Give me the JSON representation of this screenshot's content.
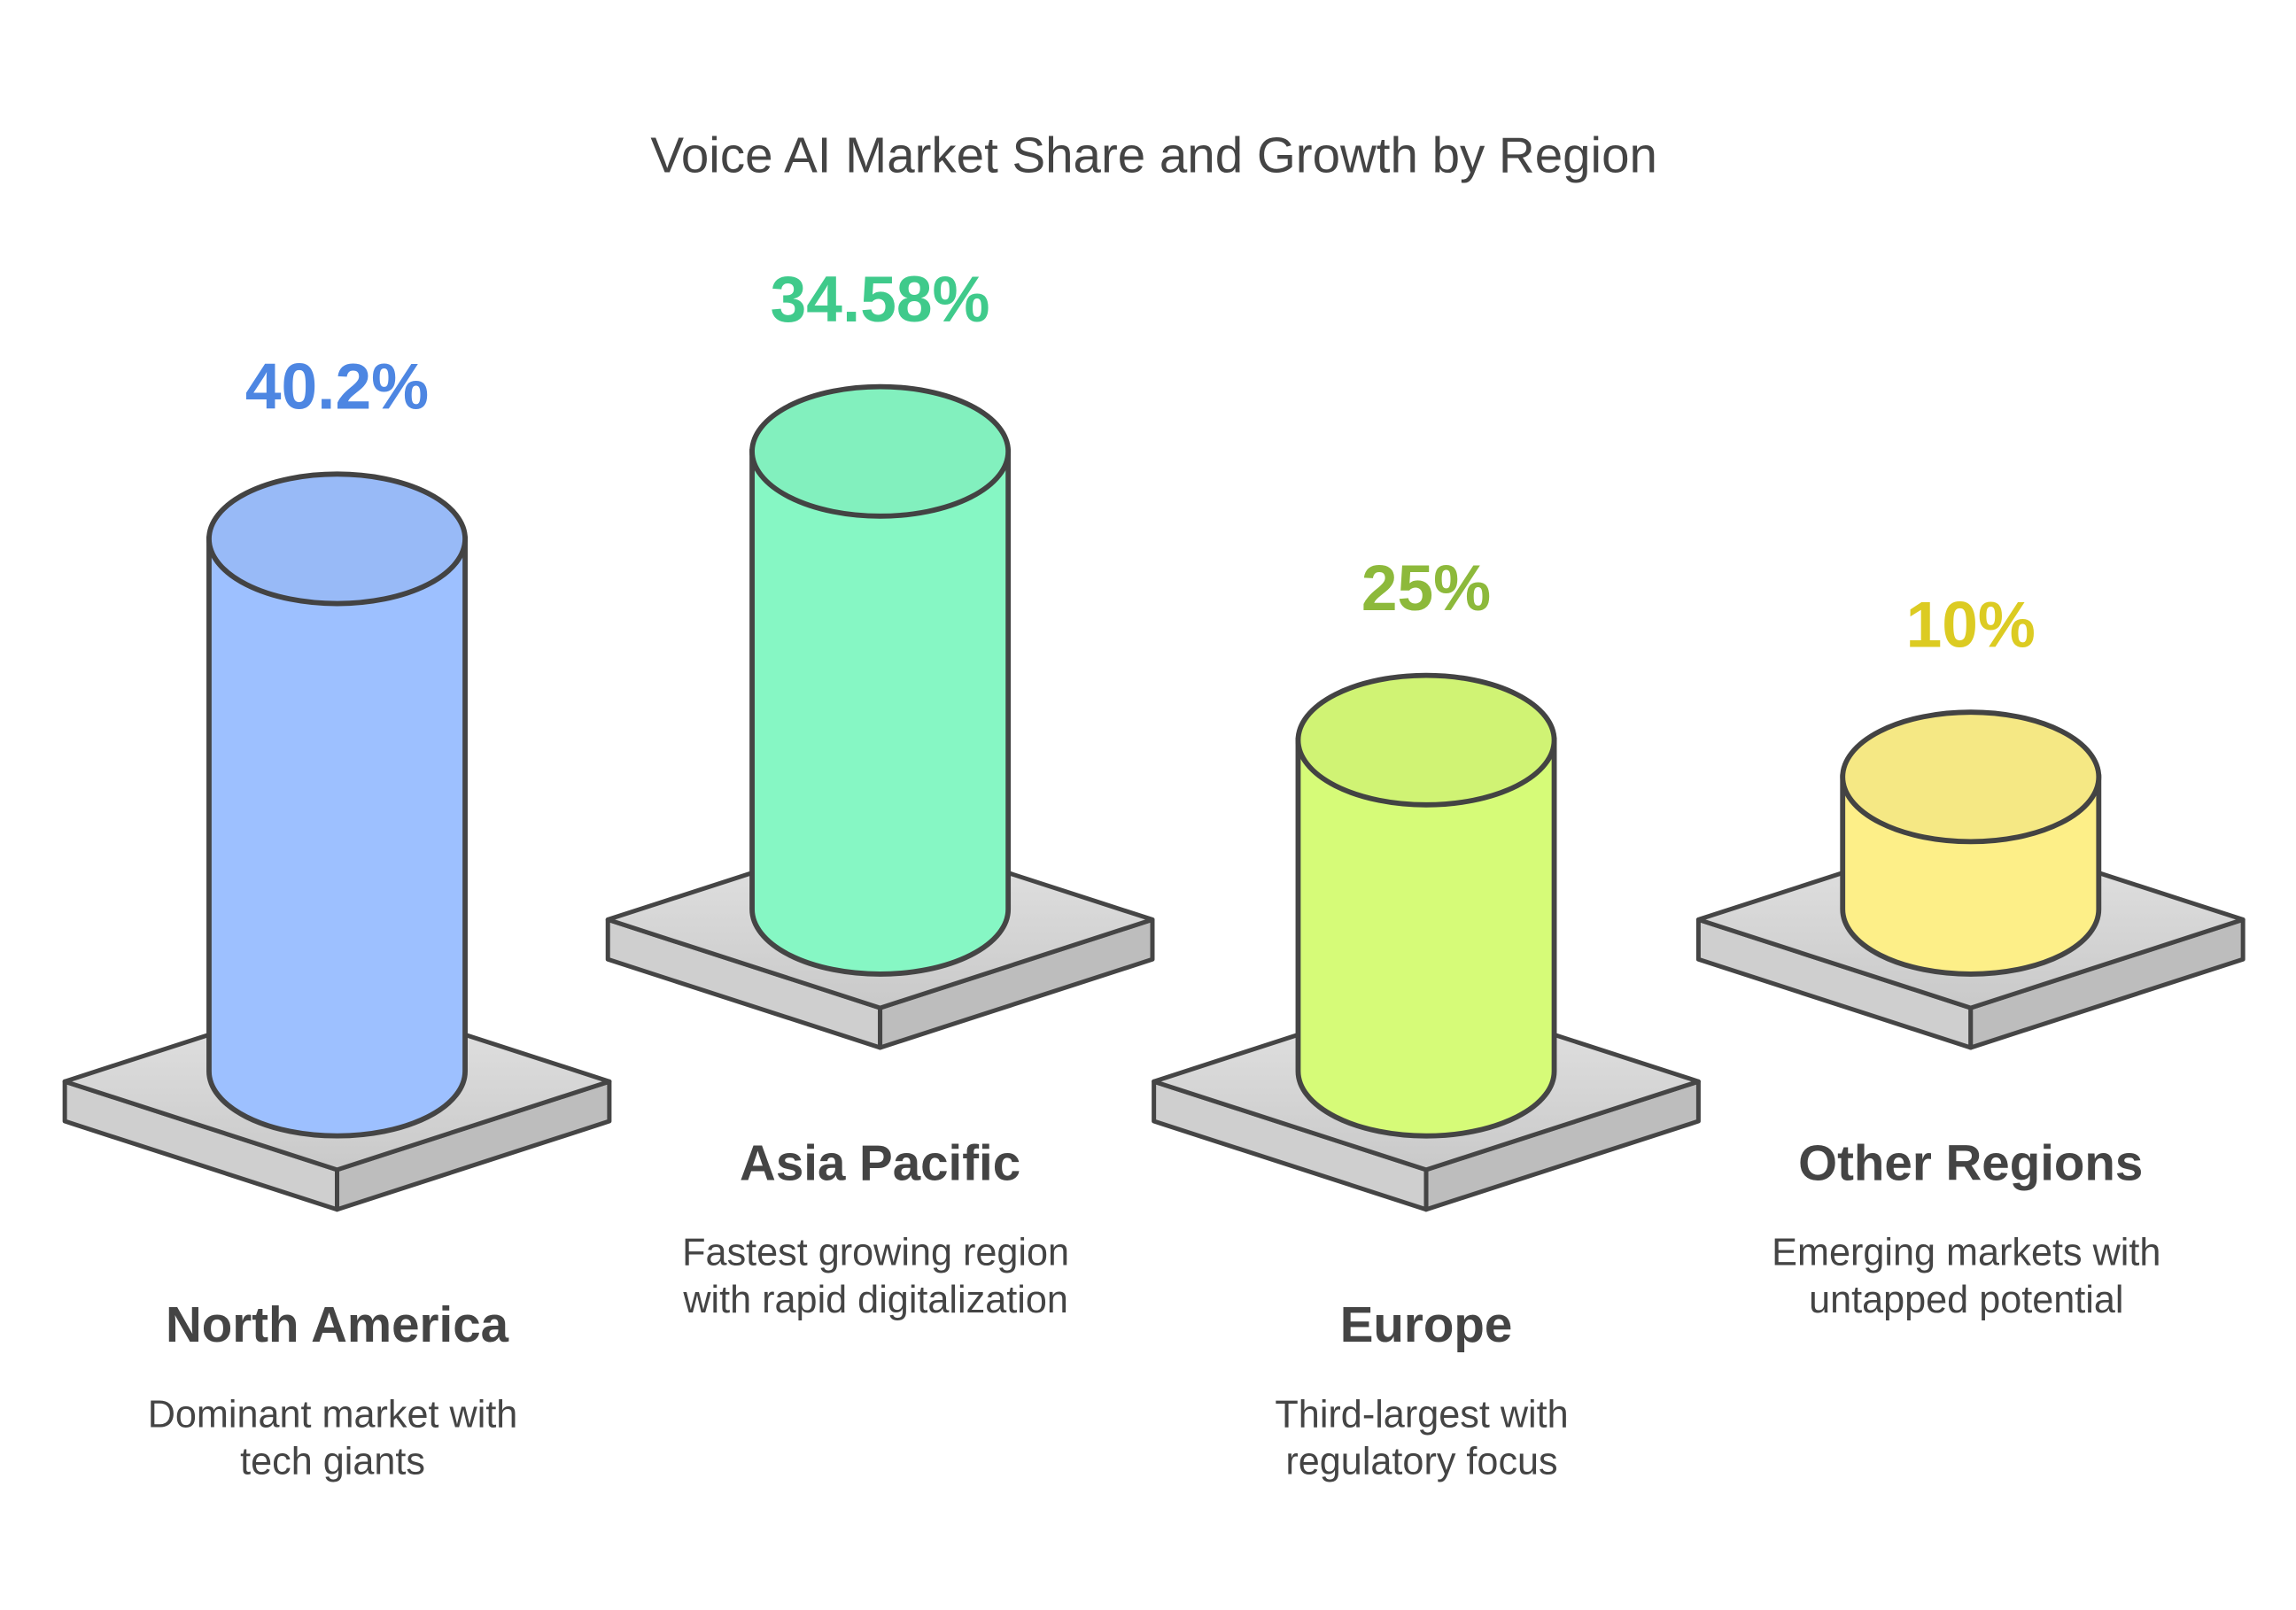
{
  "chart_data": {
    "type": "bar",
    "title": "Voice AI Market Share and Growth by Region",
    "categories": [
      "North America",
      "Asia Pacific",
      "Europe",
      "Other Regions"
    ],
    "descriptions": [
      [
        "Dominant market with",
        "tech giants"
      ],
      [
        "Fastest growing region",
        "with rapid digitalization"
      ],
      [
        "Third-largest with",
        "regulatory focus"
      ],
      [
        "Emerging markets with",
        "untapped potential"
      ]
    ],
    "values": [
      40.2,
      34.58,
      25,
      10
    ],
    "value_labels": [
      "40.2%",
      "34.58%",
      "25%",
      "10%"
    ],
    "colors": [
      "#9dc0ff",
      "#86f7c4",
      "#d6fb78",
      "#fdef88"
    ],
    "label_colors": [
      "#4d86e2",
      "#3fca8b",
      "#8db93b",
      "#dccb22"
    ]
  }
}
